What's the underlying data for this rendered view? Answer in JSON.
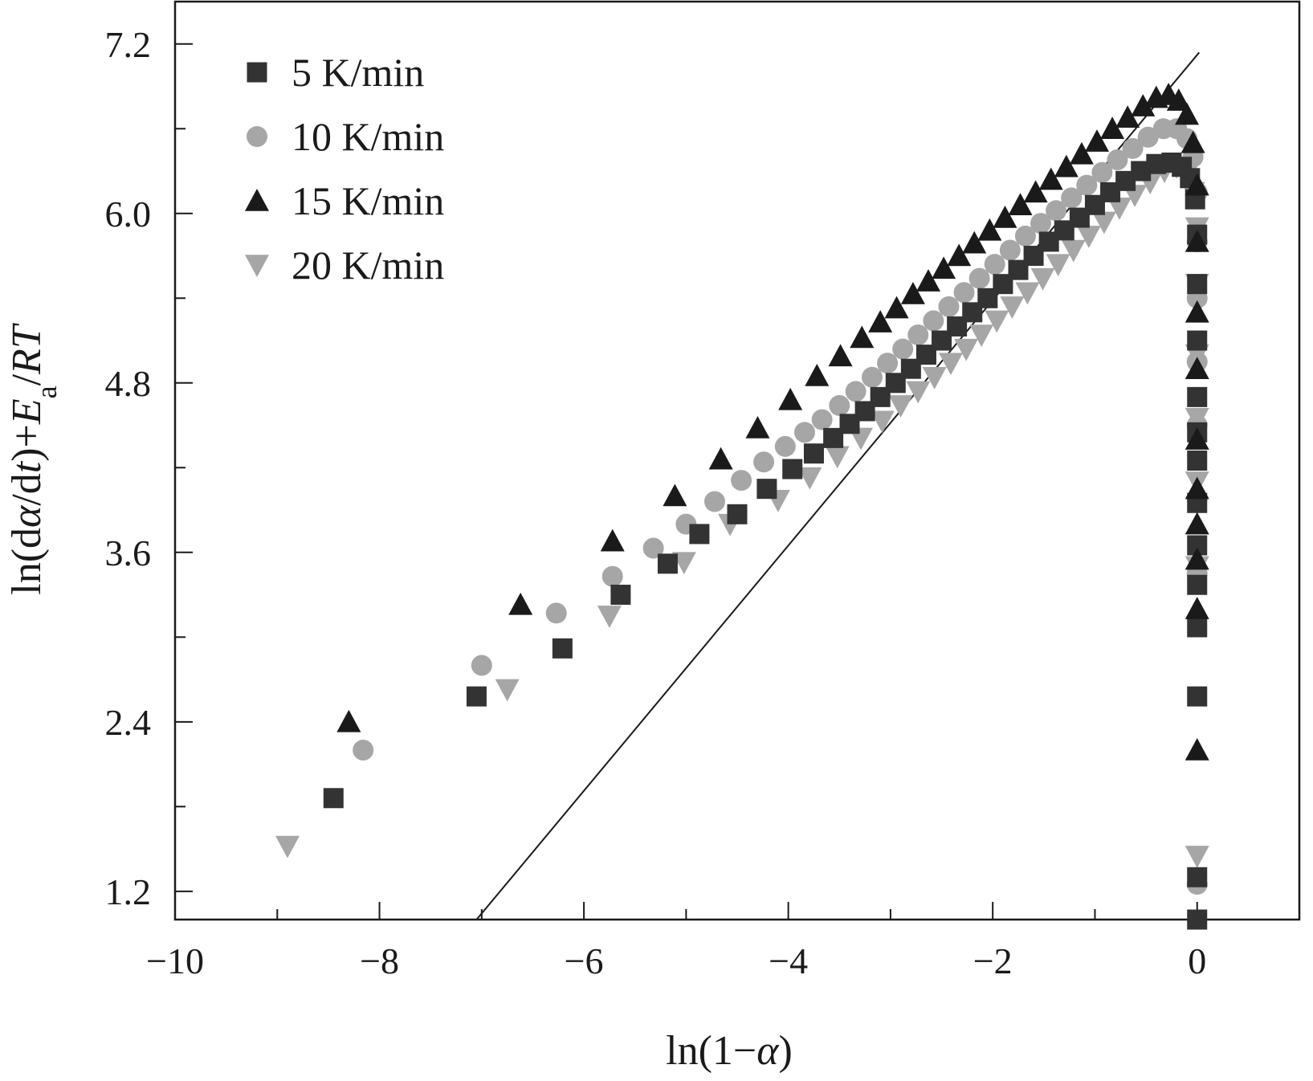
{
  "chart_data": {
    "type": "scatter",
    "title": "",
    "xlabel": "ln(1−α)",
    "ylabel": "ln(dα/dt)+Ea/RT",
    "xlim": [
      -10,
      1
    ],
    "ylim": [
      1.0,
      7.5
    ],
    "xticks": [
      -10,
      -8,
      -6,
      -4,
      -2,
      0
    ],
    "xtick_labels": [
      "−10",
      "−8",
      "−6",
      "−4",
      "−2",
      "0"
    ],
    "yticks": [
      1.2,
      2.4,
      3.6,
      4.8,
      6.0,
      7.2
    ],
    "ytick_labels": [
      "1.2",
      "2.4",
      "3.6",
      "4.8",
      "6.0",
      "7.2"
    ],
    "legend_position": "top-left",
    "colors": {
      "axis": "#1a1a1a",
      "dark_series": "#333333",
      "black_series": "#1a1a1a",
      "gray_series": "#a6a6a6"
    },
    "series": [
      {
        "name": "5 K/min",
        "marker": "square",
        "color": "#333333",
        "points": [
          [
            -8.45,
            1.86
          ],
          [
            -7.05,
            2.58
          ],
          [
            -6.21,
            2.92
          ],
          [
            -5.64,
            3.3
          ],
          [
            -5.18,
            3.52
          ],
          [
            -4.87,
            3.73
          ],
          [
            -4.5,
            3.87
          ],
          [
            -4.21,
            4.05
          ],
          [
            -3.96,
            4.19
          ],
          [
            -3.75,
            4.3
          ],
          [
            -3.56,
            4.41
          ],
          [
            -3.4,
            4.51
          ],
          [
            -3.25,
            4.6
          ],
          [
            -3.1,
            4.7
          ],
          [
            -2.95,
            4.8
          ],
          [
            -2.8,
            4.9
          ],
          [
            -2.65,
            5.0
          ],
          [
            -2.5,
            5.1
          ],
          [
            -2.35,
            5.2
          ],
          [
            -2.2,
            5.3
          ],
          [
            -2.05,
            5.4
          ],
          [
            -1.9,
            5.5
          ],
          [
            -1.75,
            5.6
          ],
          [
            -1.6,
            5.7
          ],
          [
            -1.45,
            5.8
          ],
          [
            -1.3,
            5.88
          ],
          [
            -1.15,
            5.97
          ],
          [
            -1.0,
            6.06
          ],
          [
            -0.85,
            6.15
          ],
          [
            -0.7,
            6.23
          ],
          [
            -0.55,
            6.3
          ],
          [
            -0.4,
            6.35
          ],
          [
            -0.25,
            6.36
          ],
          [
            -0.15,
            6.33
          ],
          [
            -0.07,
            6.25
          ],
          [
            -0.02,
            6.1
          ],
          [
            0.0,
            5.85
          ],
          [
            0.0,
            5.5
          ],
          [
            0.0,
            5.1
          ],
          [
            0.0,
            4.7
          ],
          [
            0.0,
            4.45
          ],
          [
            0.0,
            4.25
          ],
          [
            0.0,
            3.95
          ],
          [
            0.0,
            3.65
          ],
          [
            0.0,
            3.37
          ],
          [
            0.0,
            3.07
          ],
          [
            0.0,
            2.58
          ],
          [
            0.0,
            1.3
          ],
          [
            0.0,
            1.0
          ]
        ]
      },
      {
        "name": "10 K/min",
        "marker": "circle",
        "color": "#a6a6a6",
        "points": [
          [
            -8.16,
            2.2
          ],
          [
            -7.0,
            2.8
          ],
          [
            -6.27,
            3.17
          ],
          [
            -5.72,
            3.43
          ],
          [
            -5.32,
            3.63
          ],
          [
            -5.0,
            3.8
          ],
          [
            -4.72,
            3.96
          ],
          [
            -4.46,
            4.11
          ],
          [
            -4.24,
            4.24
          ],
          [
            -4.03,
            4.35
          ],
          [
            -3.84,
            4.45
          ],
          [
            -3.67,
            4.54
          ],
          [
            -3.5,
            4.64
          ],
          [
            -3.34,
            4.74
          ],
          [
            -3.18,
            4.84
          ],
          [
            -3.03,
            4.94
          ],
          [
            -2.88,
            5.04
          ],
          [
            -2.73,
            5.14
          ],
          [
            -2.58,
            5.24
          ],
          [
            -2.43,
            5.34
          ],
          [
            -2.28,
            5.44
          ],
          [
            -2.13,
            5.54
          ],
          [
            -1.98,
            5.64
          ],
          [
            -1.83,
            5.74
          ],
          [
            -1.68,
            5.84
          ],
          [
            -1.53,
            5.93
          ],
          [
            -1.38,
            6.02
          ],
          [
            -1.23,
            6.11
          ],
          [
            -1.08,
            6.2
          ],
          [
            -0.93,
            6.29
          ],
          [
            -0.78,
            6.38
          ],
          [
            -0.63,
            6.46
          ],
          [
            -0.48,
            6.54
          ],
          [
            -0.33,
            6.6
          ],
          [
            -0.2,
            6.6
          ],
          [
            -0.1,
            6.53
          ],
          [
            -0.04,
            6.4
          ],
          [
            0.0,
            6.15
          ],
          [
            0.0,
            5.8
          ],
          [
            0.0,
            5.4
          ],
          [
            0.0,
            4.95
          ],
          [
            0.0,
            4.5
          ],
          [
            0.0,
            3.98
          ],
          [
            0.0,
            3.45
          ],
          [
            0.0,
            1.25
          ]
        ]
      },
      {
        "name": "15 K/min",
        "marker": "triangle-up",
        "color": "#1a1a1a",
        "points": [
          [
            -8.3,
            2.4
          ],
          [
            -6.62,
            3.23
          ],
          [
            -5.72,
            3.68
          ],
          [
            -5.11,
            4.0
          ],
          [
            -4.66,
            4.26
          ],
          [
            -4.3,
            4.48
          ],
          [
            -3.98,
            4.68
          ],
          [
            -3.72,
            4.85
          ],
          [
            -3.49,
            4.99
          ],
          [
            -3.28,
            5.12
          ],
          [
            -3.1,
            5.23
          ],
          [
            -2.94,
            5.33
          ],
          [
            -2.78,
            5.43
          ],
          [
            -2.63,
            5.52
          ],
          [
            -2.48,
            5.61
          ],
          [
            -2.33,
            5.7
          ],
          [
            -2.18,
            5.79
          ],
          [
            -2.03,
            5.88
          ],
          [
            -1.88,
            5.97
          ],
          [
            -1.73,
            6.06
          ],
          [
            -1.58,
            6.15
          ],
          [
            -1.43,
            6.24
          ],
          [
            -1.28,
            6.33
          ],
          [
            -1.13,
            6.42
          ],
          [
            -0.98,
            6.51
          ],
          [
            -0.83,
            6.6
          ],
          [
            -0.68,
            6.68
          ],
          [
            -0.53,
            6.76
          ],
          [
            -0.4,
            6.82
          ],
          [
            -0.28,
            6.84
          ],
          [
            -0.18,
            6.8
          ],
          [
            -0.1,
            6.7
          ],
          [
            -0.04,
            6.5
          ],
          [
            0.0,
            6.2
          ],
          [
            0.0,
            5.8
          ],
          [
            0.0,
            5.3
          ],
          [
            0.0,
            4.9
          ],
          [
            0.0,
            4.4
          ],
          [
            0.0,
            4.05
          ],
          [
            0.0,
            3.8
          ],
          [
            0.0,
            3.55
          ],
          [
            0.0,
            3.2
          ],
          [
            0.0,
            2.2
          ]
        ]
      },
      {
        "name": "20 K/min",
        "marker": "triangle-down",
        "color": "#a6a6a6",
        "points": [
          [
            -8.9,
            1.52
          ],
          [
            -6.75,
            2.63
          ],
          [
            -5.75,
            3.15
          ],
          [
            -5.02,
            3.53
          ],
          [
            -4.57,
            3.8
          ],
          [
            -4.1,
            3.97
          ],
          [
            -3.79,
            4.13
          ],
          [
            -3.52,
            4.28
          ],
          [
            -3.29,
            4.41
          ],
          [
            -3.08,
            4.53
          ],
          [
            -2.9,
            4.64
          ],
          [
            -2.73,
            4.74
          ],
          [
            -2.57,
            4.84
          ],
          [
            -2.41,
            4.94
          ],
          [
            -2.26,
            5.04
          ],
          [
            -2.11,
            5.14
          ],
          [
            -1.96,
            5.24
          ],
          [
            -1.81,
            5.34
          ],
          [
            -1.66,
            5.44
          ],
          [
            -1.51,
            5.54
          ],
          [
            -1.36,
            5.64
          ],
          [
            -1.21,
            5.74
          ],
          [
            -1.06,
            5.84
          ],
          [
            -0.91,
            5.94
          ],
          [
            -0.76,
            6.04
          ],
          [
            -0.61,
            6.13
          ],
          [
            -0.46,
            6.22
          ],
          [
            -0.32,
            6.3
          ],
          [
            -0.2,
            6.33
          ],
          [
            -0.1,
            6.28
          ],
          [
            -0.04,
            6.15
          ],
          [
            0.0,
            5.9
          ],
          [
            0.0,
            5.5
          ],
          [
            0.0,
            5.0
          ],
          [
            0.0,
            4.55
          ],
          [
            0.0,
            4.1
          ],
          [
            0.0,
            3.5
          ],
          [
            0.0,
            1.45
          ]
        ]
      }
    ],
    "reference_line": {
      "style": "solid-thin",
      "color": "#1a1a1a",
      "points": [
        [
          -7.05,
          1.0
        ],
        [
          0.02,
          7.14
        ]
      ]
    }
  }
}
